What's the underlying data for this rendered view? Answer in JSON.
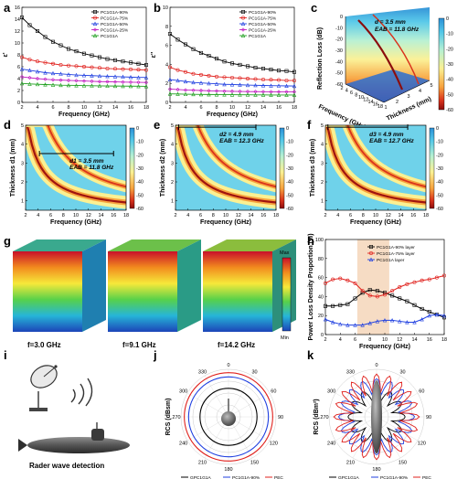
{
  "panel_labels": [
    "a",
    "b",
    "c",
    "d",
    "e",
    "f",
    "g",
    "h",
    "i",
    "j",
    "k"
  ],
  "colors": {
    "s90": "#000000",
    "s75": "#e0201c",
    "s50": "#1f3fe0",
    "s25": "#c01ac0",
    "s0": "#1c9e1c",
    "h90": "#000000",
    "h75": "#e0201c",
    "h0": "#1f3fe0",
    "pec": "#e0201c",
    "gp": "#000000",
    "pc90": "#1f3fe0",
    "band": "#f6dcc4"
  },
  "chart_data": [
    {
      "id": "a",
      "type": "line",
      "xlabel": "Frequency (GHz)",
      "ylabel": "ε'",
      "xlim": [
        2,
        18
      ],
      "ylim": [
        0,
        16
      ],
      "xticks": [
        "2",
        "4",
        "6",
        "8",
        "10",
        "12",
        "14",
        "16",
        "18"
      ],
      "yticks": [
        "0",
        "2",
        "4",
        "6",
        "8",
        "10",
        "12",
        "14",
        "16"
      ],
      "x": [
        2,
        3,
        4,
        5,
        6,
        7,
        8,
        9,
        10,
        11,
        12,
        13,
        14,
        15,
        16,
        17,
        18
      ],
      "legend_position": "top-right",
      "series": [
        {
          "name": "PC1G1A-90%",
          "color_key": "s90",
          "marker": "square",
          "values": [
            14.3,
            13.0,
            12.0,
            11.0,
            10.2,
            9.6,
            9.0,
            8.6,
            8.2,
            7.9,
            7.6,
            7.3,
            7.1,
            6.9,
            6.7,
            6.5,
            6.3
          ]
        },
        {
          "name": "PC1G1A-75%",
          "color_key": "s75",
          "marker": "circle",
          "values": [
            7.6,
            7.2,
            6.9,
            6.7,
            6.5,
            6.3,
            6.2,
            6.1,
            6.0,
            5.9,
            5.8,
            5.7,
            5.65,
            5.6,
            5.55,
            5.5,
            5.45
          ]
        },
        {
          "name": "PC1G1A-50%",
          "color_key": "s50",
          "marker": "triangle",
          "values": [
            5.6,
            5.4,
            5.2,
            5.0,
            4.9,
            4.8,
            4.7,
            4.6,
            4.55,
            4.5,
            4.45,
            4.4,
            4.35,
            4.3,
            4.25,
            4.2,
            4.2
          ]
        },
        {
          "name": "PC1G1A-25%",
          "color_key": "s25",
          "marker": "diamond",
          "values": [
            4.3,
            4.15,
            4.0,
            3.9,
            3.8,
            3.75,
            3.7,
            3.65,
            3.6,
            3.55,
            3.5,
            3.48,
            3.45,
            3.42,
            3.4,
            3.38,
            3.35
          ]
        },
        {
          "name": "PC1G1A",
          "color_key": "s0",
          "marker": "triangle",
          "values": [
            3.2,
            3.1,
            3.05,
            3.0,
            2.95,
            2.9,
            2.88,
            2.85,
            2.82,
            2.8,
            2.78,
            2.76,
            2.75,
            2.74,
            2.73,
            2.72,
            2.7
          ]
        }
      ]
    },
    {
      "id": "b",
      "type": "line",
      "xlabel": "Frequency (GHz)",
      "ylabel": "ε''",
      "xlim": [
        2,
        18
      ],
      "ylim": [
        0,
        10
      ],
      "xticks": [
        "2",
        "4",
        "6",
        "8",
        "10",
        "12",
        "14",
        "16",
        "18"
      ],
      "yticks": [
        "0",
        "2",
        "4",
        "6",
        "8",
        "10"
      ],
      "x": [
        2,
        3,
        4,
        5,
        6,
        7,
        8,
        9,
        10,
        11,
        12,
        13,
        14,
        15,
        16,
        17,
        18
      ],
      "legend_position": "top-right",
      "series": [
        {
          "name": "PC1G1A-90%",
          "color_key": "s90",
          "marker": "square",
          "values": [
            7.2,
            6.6,
            6.1,
            5.6,
            5.2,
            4.9,
            4.6,
            4.3,
            4.1,
            3.95,
            3.8,
            3.65,
            3.55,
            3.45,
            3.35,
            3.3,
            3.2
          ]
        },
        {
          "name": "PC1G1A-75%",
          "color_key": "s75",
          "marker": "circle",
          "values": [
            3.7,
            3.4,
            3.2,
            3.0,
            2.9,
            2.8,
            2.7,
            2.65,
            2.6,
            2.55,
            2.5,
            2.45,
            2.4,
            2.38,
            2.35,
            2.3,
            2.3
          ]
        },
        {
          "name": "PC1G1A-50%",
          "color_key": "s50",
          "marker": "triangle",
          "values": [
            2.4,
            2.3,
            2.2,
            2.1,
            2.05,
            2.0,
            1.95,
            1.9,
            1.88,
            1.85,
            1.82,
            1.8,
            1.78,
            1.76,
            1.75,
            1.73,
            1.72
          ]
        },
        {
          "name": "PC1G1A-25%",
          "color_key": "s25",
          "marker": "diamond",
          "values": [
            1.4,
            1.35,
            1.3,
            1.28,
            1.25,
            1.22,
            1.2,
            1.18,
            1.16,
            1.15,
            1.14,
            1.13,
            1.12,
            1.11,
            1.1,
            1.1,
            1.1
          ]
        },
        {
          "name": "PC1G1A",
          "color_key": "s0",
          "marker": "triangle",
          "values": [
            0.9,
            0.88,
            0.86,
            0.85,
            0.84,
            0.83,
            0.82,
            0.82,
            0.81,
            0.8,
            0.8,
            0.79,
            0.79,
            0.78,
            0.78,
            0.78,
            0.78
          ]
        }
      ]
    },
    {
      "id": "c",
      "type": "surface",
      "xlabel": "Frequency (GHz)",
      "ylabel": "Thickness (mm)",
      "zlabel": "Reflection Loss (dB)",
      "zticks": [
        "0",
        "-10",
        "-20",
        "-30",
        "-40",
        "-50",
        "-60"
      ],
      "xticks": [
        "2",
        "4",
        "6",
        "8",
        "10",
        "12",
        "14",
        "16",
        "18"
      ],
      "yticks": [
        "1",
        "2",
        "3",
        "4",
        "5"
      ],
      "annotations": [
        "d = 3.5 mm",
        "EAB = 11.8 GHz"
      ]
    },
    {
      "id": "d",
      "type": "heatmap",
      "xlabel": "Frequency (GHz)",
      "ylabel": "Thickness d1 (mm)",
      "xlim": [
        2,
        18
      ],
      "ylim": [
        0.5,
        5
      ],
      "xticks": [
        "2",
        "4",
        "6",
        "8",
        "10",
        "12",
        "14",
        "16",
        "18"
      ],
      "yticks": [
        "1",
        "2",
        "3",
        "4",
        "5"
      ],
      "thickness": 3.5,
      "eab_range": [
        4.2,
        16.0
      ],
      "annotations": [
        "d1 = 3.5 mm",
        "EAB = 11.8 GHz"
      ]
    },
    {
      "id": "e",
      "type": "heatmap",
      "xlabel": "Frequency (GHz)",
      "ylabel": "Thickness d2 (mm)",
      "xlim": [
        2,
        18
      ],
      "ylim": [
        0.5,
        5
      ],
      "xticks": [
        "2",
        "4",
        "6",
        "8",
        "10",
        "12",
        "14",
        "16",
        "18"
      ],
      "yticks": [
        "1",
        "2",
        "3",
        "4",
        "5"
      ],
      "thickness": 4.9,
      "eab_range": [
        2.5,
        14.8
      ],
      "annotations": [
        "d2 = 4.9 mm",
        "EAB = 12.3 GHz"
      ]
    },
    {
      "id": "f",
      "type": "heatmap",
      "xlabel": "Frequency (GHz)",
      "ylabel": "Thickness d3 (mm)",
      "xlim": [
        2,
        18
      ],
      "ylim": [
        0.5,
        5
      ],
      "xticks": [
        "2",
        "4",
        "6",
        "8",
        "10",
        "12",
        "14",
        "16",
        "18"
      ],
      "yticks": [
        "1",
        "2",
        "3",
        "4",
        "5"
      ],
      "thickness": 4.9,
      "eab_range": [
        2.4,
        15.1
      ],
      "annotations": [
        "d3 = 4.9 mm",
        "EAB = 12.7 GHz"
      ]
    },
    {
      "id": "colorbar",
      "type": "colorbar",
      "ticks": [
        "0",
        "-10",
        "-20",
        "-30",
        "-40",
        "-50",
        "-60"
      ]
    },
    {
      "id": "g",
      "type": "3d-simulation",
      "labels": [
        "f=3.0 GHz",
        "f=9.1 GHz",
        "f=14.2 GHz"
      ],
      "scale": [
        "Max",
        "Min"
      ]
    },
    {
      "id": "h",
      "type": "line",
      "xlabel": "Frequency (GHz)",
      "ylabel": "Power Loss Density Proportion (%)",
      "xlim": [
        2,
        18
      ],
      "ylim": [
        0,
        100
      ],
      "xticks": [
        "2",
        "4",
        "6",
        "8",
        "10",
        "12",
        "14",
        "16",
        "18"
      ],
      "yticks": [
        "0",
        "20",
        "40",
        "60",
        "80",
        "100"
      ],
      "band": [
        6.3,
        10.6
      ],
      "x": [
        2,
        3,
        4,
        5,
        6,
        7,
        8,
        9,
        10,
        11,
        12,
        13,
        14,
        15,
        16,
        17,
        18
      ],
      "legend_position": "top-right",
      "series": [
        {
          "name": "PC1G1A-90% layer",
          "color_key": "h90",
          "marker": "square",
          "values": [
            30,
            30,
            31,
            32,
            38,
            44,
            47,
            46,
            44,
            41,
            38,
            35,
            31,
            27,
            24,
            21,
            18
          ]
        },
        {
          "name": "PC1G1A-75% layer",
          "color_key": "h75",
          "marker": "circle",
          "values": [
            54,
            58,
            59,
            57,
            54,
            46,
            41,
            40,
            42,
            46,
            50,
            53,
            55,
            57,
            58,
            60,
            62
          ]
        },
        {
          "name": "PC1G1A layer",
          "color_key": "h0",
          "marker": "triangle",
          "values": [
            16,
            13,
            11,
            10,
            10,
            10,
            12,
            14,
            15,
            15,
            14,
            13,
            13,
            16,
            20,
            21,
            20
          ]
        }
      ]
    },
    {
      "id": "j",
      "type": "polar",
      "ylabel": "RCS (dBsm)",
      "angle_ticks": [
        "0",
        "30",
        "60",
        "90",
        "120",
        "150",
        "180",
        "210",
        "240",
        "270",
        "300",
        "330"
      ],
      "series": [
        {
          "name": "GPC1G1A",
          "color_key": "gp",
          "radius": 0.6
        },
        {
          "name": "PC1G1A-90%",
          "color_key": "pc90",
          "radius": 0.84
        },
        {
          "name": "PEC",
          "color_key": "pec",
          "radius": 0.93
        }
      ]
    },
    {
      "id": "k",
      "type": "polar",
      "ylabel": "RCS (dBm²)",
      "angle_ticks": [
        "0",
        "30",
        "60",
        "90",
        "120",
        "150",
        "180",
        "210",
        "240",
        "270",
        "300",
        "330"
      ],
      "series": [
        {
          "name": "GPC1G1A",
          "color_key": "gp",
          "radius": 0.6
        },
        {
          "name": "PC1G1A-90%",
          "color_key": "pc90",
          "radius": 0.8
        },
        {
          "name": "PEC",
          "color_key": "pec",
          "radius": 0.9
        }
      ]
    }
  ],
  "panel_i": {
    "caption": "Rader wave detection"
  }
}
